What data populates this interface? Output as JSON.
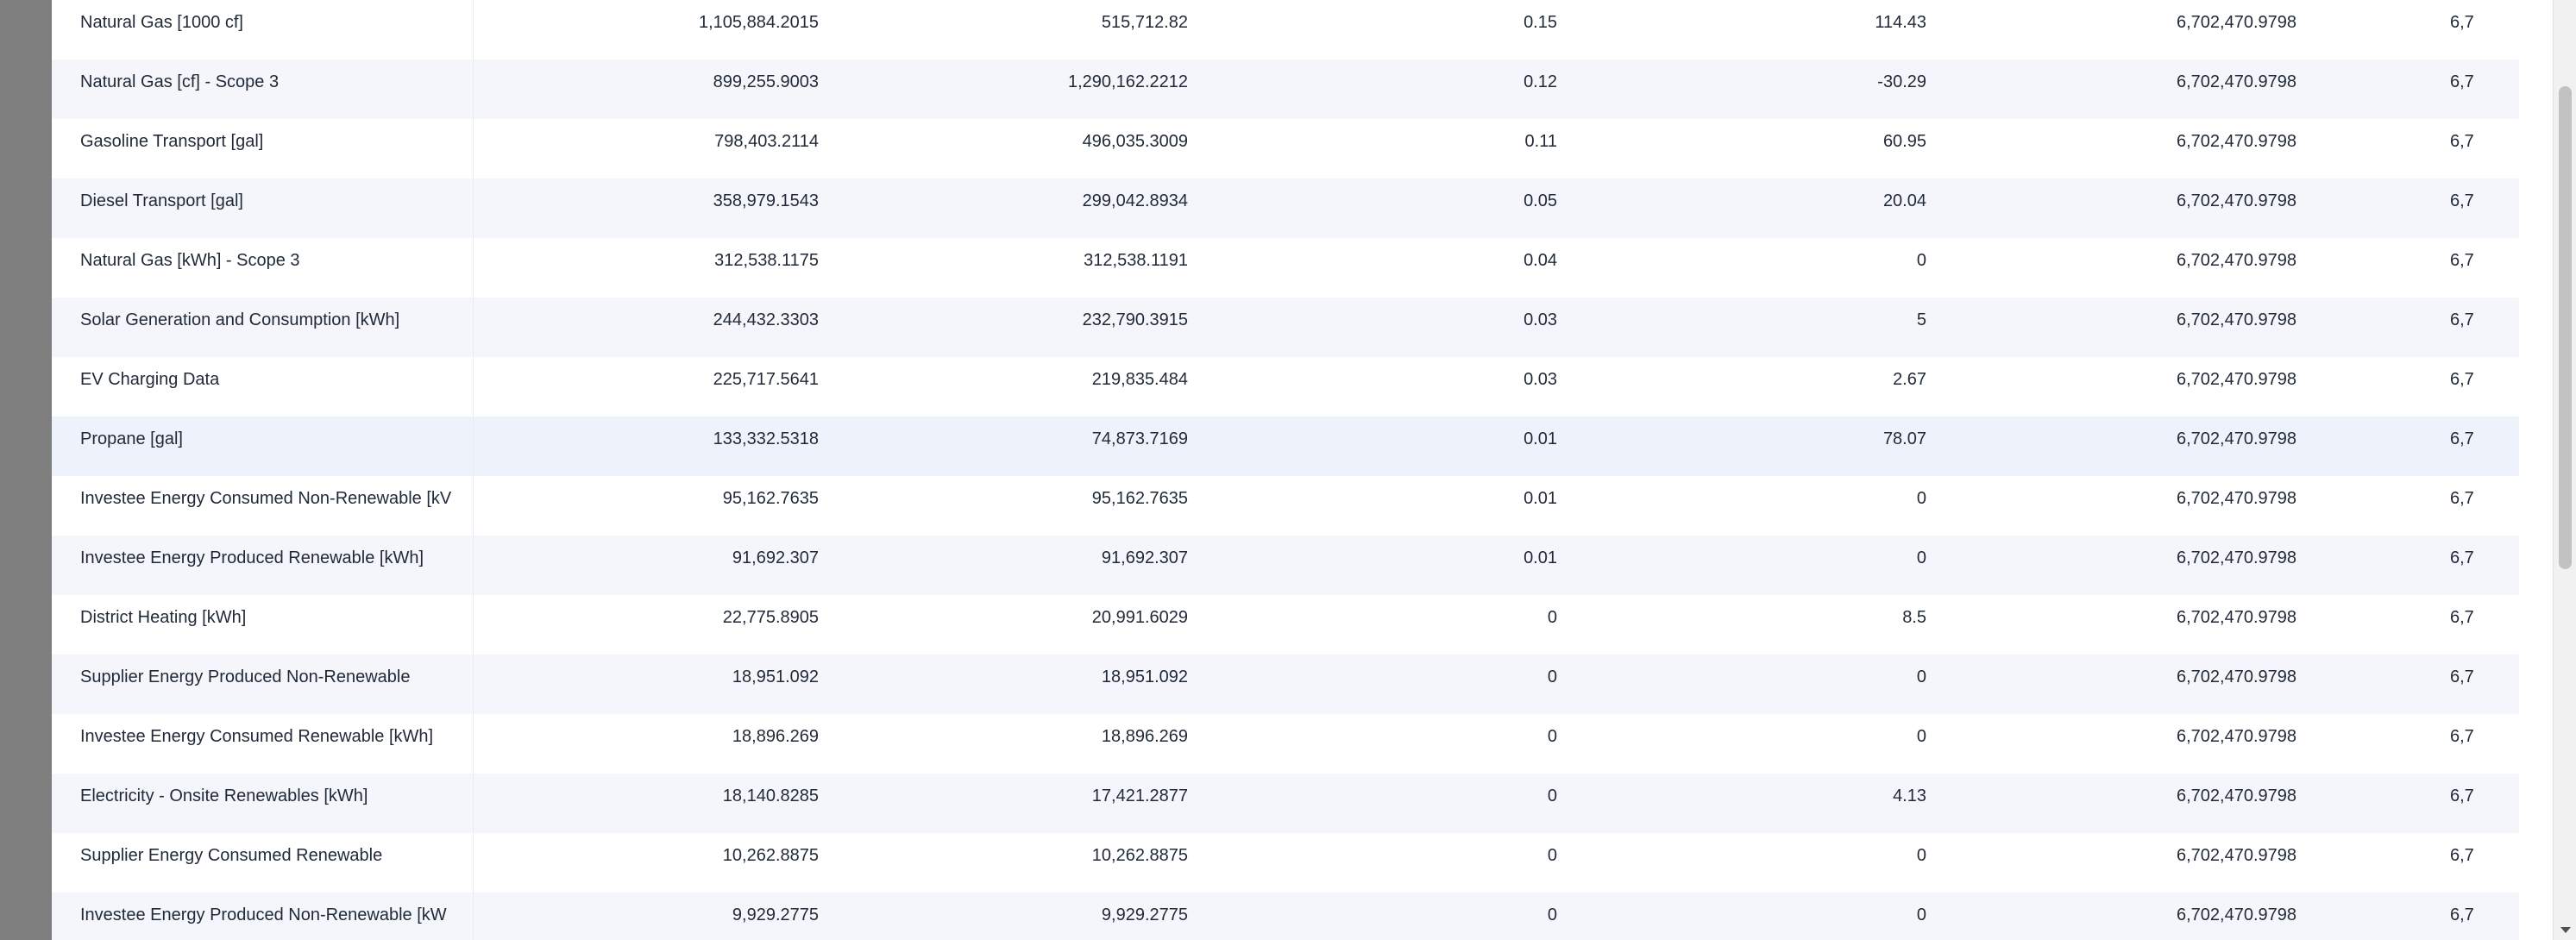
{
  "table": {
    "rows": [
      {
        "name": "Natural Gas [1000 cf]",
        "c1": "1,105,884.2015",
        "c2": "515,712.82",
        "c3": "0.15",
        "c4": "114.43",
        "c5": "6,702,470.9798",
        "c6": "6,7"
      },
      {
        "name": "Natural Gas [cf] - Scope 3",
        "c1": "899,255.9003",
        "c2": "1,290,162.2212",
        "c3": "0.12",
        "c4": "-30.29",
        "c5": "6,702,470.9798",
        "c6": "6,7"
      },
      {
        "name": "Gasoline Transport [gal]",
        "c1": "798,403.2114",
        "c2": "496,035.3009",
        "c3": "0.11",
        "c4": "60.95",
        "c5": "6,702,470.9798",
        "c6": "6,7"
      },
      {
        "name": "Diesel Transport [gal]",
        "c1": "358,979.1543",
        "c2": "299,042.8934",
        "c3": "0.05",
        "c4": "20.04",
        "c5": "6,702,470.9798",
        "c6": "6,7"
      },
      {
        "name": "Natural Gas [kWh] - Scope 3",
        "c1": "312,538.1175",
        "c2": "312,538.1191",
        "c3": "0.04",
        "c4": "0",
        "c5": "6,702,470.9798",
        "c6": "6,7"
      },
      {
        "name": "Solar Generation and Consumption [kWh]",
        "c1": "244,432.3303",
        "c2": "232,790.3915",
        "c3": "0.03",
        "c4": "5",
        "c5": "6,702,470.9798",
        "c6": "6,7"
      },
      {
        "name": "EV Charging Data",
        "c1": "225,717.5641",
        "c2": "219,835.484",
        "c3": "0.03",
        "c4": "2.67",
        "c5": "6,702,470.9798",
        "c6": "6,7"
      },
      {
        "name": "Propane [gal]",
        "c1": "133,332.5318",
        "c2": "74,873.7169",
        "c3": "0.01",
        "c4": "78.07",
        "c5": "6,702,470.9798",
        "c6": "6,7"
      },
      {
        "name": "Investee Energy Consumed Non-Renewable [kV",
        "c1": "95,162.7635",
        "c2": "95,162.7635",
        "c3": "0.01",
        "c4": "0",
        "c5": "6,702,470.9798",
        "c6": "6,7"
      },
      {
        "name": "Investee Energy Produced Renewable [kWh]",
        "c1": "91,692.307",
        "c2": "91,692.307",
        "c3": "0.01",
        "c4": "0",
        "c5": "6,702,470.9798",
        "c6": "6,7"
      },
      {
        "name": "District Heating [kWh]",
        "c1": "22,775.8905",
        "c2": "20,991.6029",
        "c3": "0",
        "c4": "8.5",
        "c5": "6,702,470.9798",
        "c6": "6,7"
      },
      {
        "name": "Supplier Energy Produced Non-Renewable",
        "c1": "18,951.092",
        "c2": "18,951.092",
        "c3": "0",
        "c4": "0",
        "c5": "6,702,470.9798",
        "c6": "6,7"
      },
      {
        "name": "Investee Energy Consumed Renewable [kWh]",
        "c1": "18,896.269",
        "c2": "18,896.269",
        "c3": "0",
        "c4": "0",
        "c5": "6,702,470.9798",
        "c6": "6,7"
      },
      {
        "name": "Electricity - Onsite Renewables [kWh]",
        "c1": "18,140.8285",
        "c2": "17,421.2877",
        "c3": "0",
        "c4": "4.13",
        "c5": "6,702,470.9798",
        "c6": "6,7"
      },
      {
        "name": "Supplier Energy Consumed Renewable",
        "c1": "10,262.8875",
        "c2": "10,262.8875",
        "c3": "0",
        "c4": "0",
        "c5": "6,702,470.9798",
        "c6": "6,7"
      },
      {
        "name": "Investee Energy Produced Non-Renewable [kW",
        "c1": "9,929.2775",
        "c2": "9,929.2775",
        "c3": "0",
        "c4": "0",
        "c5": "6,702,470.9798",
        "c6": "6,7"
      }
    ]
  }
}
